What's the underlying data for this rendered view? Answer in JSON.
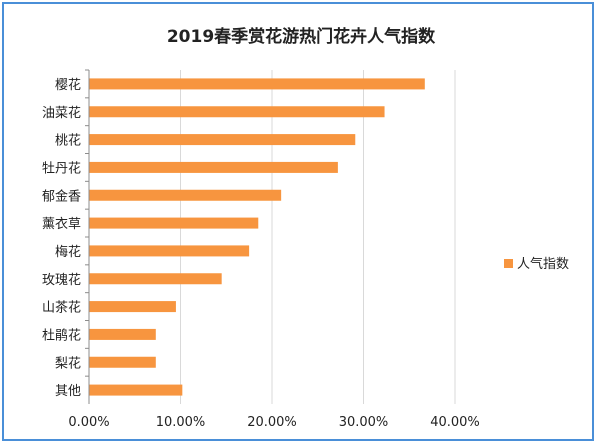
{
  "chart_data": {
    "type": "bar",
    "orientation": "horizontal",
    "title": "2019春季赏花游热门花卉人气指数",
    "categories": [
      "樱花",
      "油菜花",
      "桃花",
      "牡丹花",
      "郁金香",
      "薰衣草",
      "梅花",
      "玫瑰花",
      "山茶花",
      "杜鹃花",
      "梨花",
      "其他"
    ],
    "series": [
      {
        "name": "人气指数",
        "values": [
          0.367,
          0.323,
          0.291,
          0.272,
          0.21,
          0.185,
          0.175,
          0.145,
          0.095,
          0.073,
          0.073,
          0.102
        ]
      }
    ],
    "xlim": [
      0,
      0.4
    ],
    "xticks": [
      "0.00%",
      "10.00%",
      "20.00%",
      "30.00%",
      "40.00%"
    ],
    "grid": "vertical",
    "legend_position": "right",
    "colors": {
      "bar": "#F7953F",
      "grid": "#d9d9d9",
      "axis": "#8c8c8c",
      "text": "#222222",
      "frame": "#4a8fd8"
    }
  }
}
